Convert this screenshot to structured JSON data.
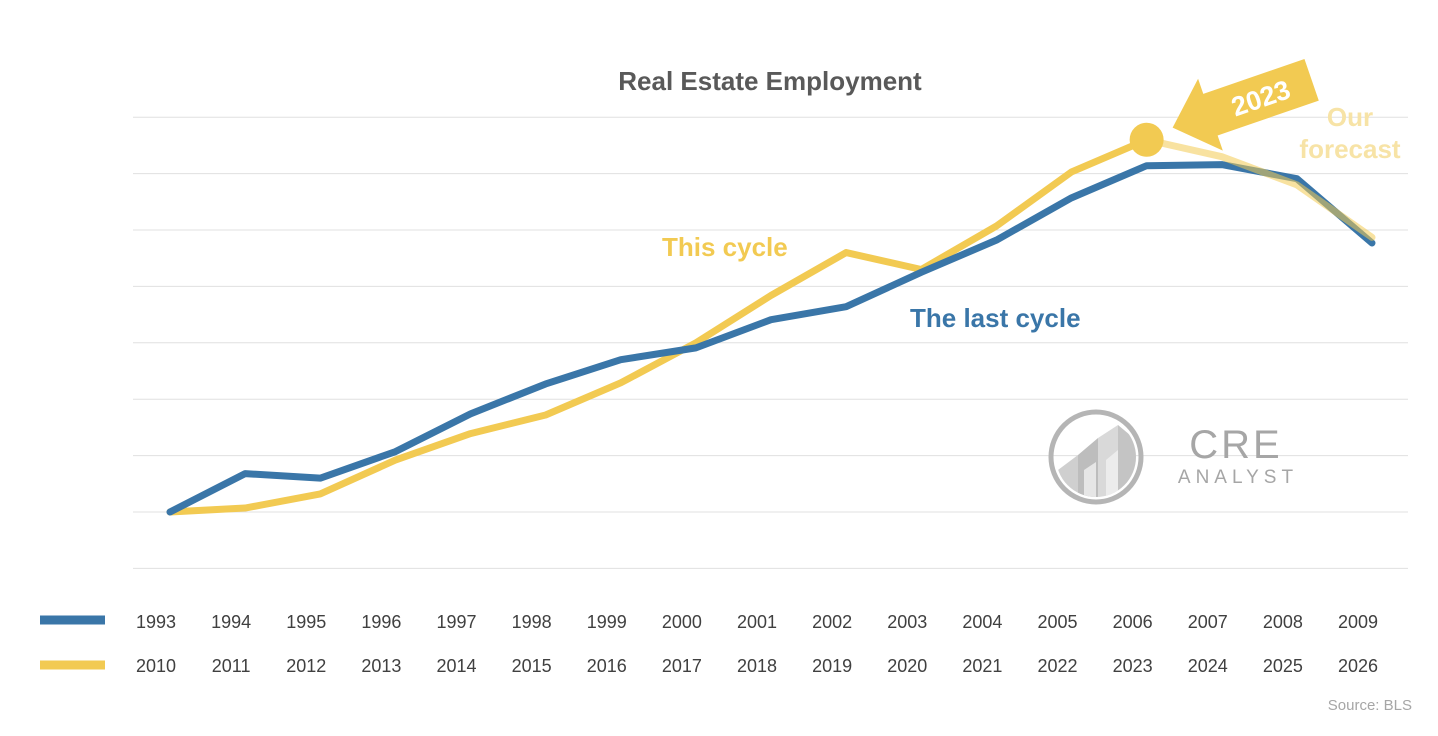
{
  "chart_data": {
    "type": "line",
    "title": "Real Estate Employment",
    "xlabel": "",
    "ylabel": "",
    "grid": true,
    "legend": "bottom-left",
    "y_axis_labels_shown": false,
    "series": [
      {
        "color": "#3a76a8",
        "categories": [
          "1993",
          "1994",
          "1995",
          "1996",
          "1997",
          "1998",
          "1999",
          "2000",
          "2001",
          "2002",
          "2003",
          "2004",
          "2005",
          "2006",
          "2007",
          "2008",
          "2009"
        ],
        "values": [
          0.0,
          0.68,
          0.6,
          1.07,
          1.74,
          2.27,
          2.7,
          2.91,
          3.41,
          3.64,
          4.25,
          4.82,
          5.57,
          6.14,
          6.16,
          5.91,
          4.77
        ]
      },
      {
        "color": "#f2ca52",
        "categories": [
          "2010",
          "2011",
          "2012",
          "2013",
          "2014",
          "2015",
          "2016",
          "2017",
          "2018",
          "2019",
          "2020",
          "2021",
          "2022",
          "2023",
          "2024",
          "2025",
          "2026"
        ],
        "values": [
          0.0,
          0.07,
          0.32,
          0.92,
          1.39,
          1.72,
          2.29,
          3.0,
          3.84,
          4.6,
          4.3,
          5.07,
          6.03,
          6.6,
          6.3,
          5.8,
          4.87
        ],
        "forecast_from": "2023"
      }
    ],
    "annotations": {
      "this_cycle": "This cycle",
      "last_cycle": "The last cycle",
      "forecast": [
        "Our",
        "forecast"
      ],
      "arrow_label": "2023"
    },
    "source": "Source: BLS"
  },
  "logo": {
    "line1": "CRE",
    "line2": "ANALYST"
  },
  "colors": {
    "last_cycle": "#3a76a8",
    "this_cycle": "#f2ca52",
    "forecast_fade": "#f7e3a6",
    "grid": "#e0e0e0"
  }
}
